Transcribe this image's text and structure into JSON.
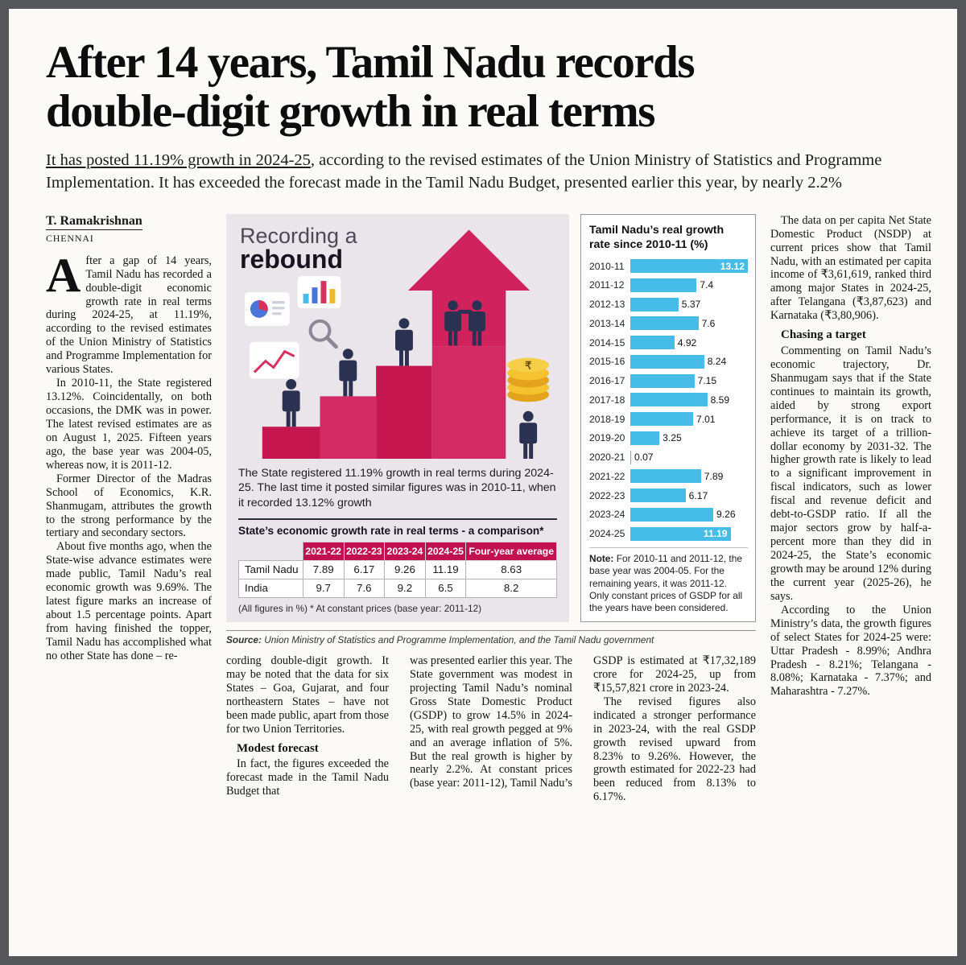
{
  "page": {
    "headline_line1": "After 14 years, Tamil Nadu records",
    "headline_line2": "double-digit growth in real terms",
    "subhead_underlined": "It has posted 11.19% growth in 2024-25",
    "subhead_rest": ", according to the revised estimates of the Union Ministry of Statistics and Programme Implementation. It has exceeded the forecast made in the Tamil Nadu Budget, presented earlier this year, by nearly 2.2%"
  },
  "byline": {
    "author": "T. Ramakrishnan",
    "place": "CHENNAI"
  },
  "article": {
    "col1": {
      "dropcap": "A",
      "para1": "fter a gap of 14 years, Tamil Nadu has recorded a double-digit economic growth rate in real terms during 2024-25, at 11.19%, according to the revised estimates of the Union Ministry of Statistics and Programme Implementation for various States.",
      "para2": "In 2010-11, the State registered 13.12%. Coincidentally, on both occasions, the DMK was in power. The latest revised estimates are as on August 1, 2025. Fifteen years ago, the base year was 2004-05, whereas now, it is 2011-12.",
      "para3": "Former Director of the Madras School of Economics, K.R. Shanmugam, attributes the growth to the strong performance by the tertiary and secondary sectors.",
      "para4": "About five months ago, when the State-wise advance estimates were made public, Tamil Nadu’s real economic growth was 9.69%. The latest figure marks an increase of about 1.5 percentage points. Apart from having finished the topper, Tamil Nadu has accomplished what no other State has done – re-"
    },
    "colA": {
      "p1": "cording double-digit growth. It may be noted that the data for six States – Goa, Gujarat, and four northeastern States – have not been made public, apart from those for two Union Territories.",
      "head": "Modest forecast",
      "p2": "In fact, the figures exceeded the forecast made in the Tamil Nadu Budget that"
    },
    "colB": {
      "p1": "was presented earlier this year. The State government was modest in projecting Tamil Nadu’s nominal Gross State Domestic Product (GSDP) to grow 14.5% in 2024-25, with real growth pegged at 9% and an average inflation of 5%. But the real growth is higher by nearly 2.2%. At constant prices (base year: 2011-12), Tamil Nadu’s"
    },
    "colC": {
      "p1": "GSDP is estimated at ₹17,32,189 crore for 2024-25, up from ₹15,57,821 crore in 2023-24.",
      "p2": "The revised figures also indicated a stronger performance in 2023-24, with the real GSDP growth revised upward from 8.23% to 9.26%. However, the growth estimated for 2022-23 had been reduced from 8.13% to 6.17%."
    },
    "right": {
      "p1": "The data on per capita Net State Domestic Product (NSDP) at current prices show that Tamil Nadu, with an estimated per capita income of ₹3,61,619, ranked third among major States in 2024-25, after Telangana (₹3,87,623) and Karnataka (₹3,80,906).",
      "head": "Chasing a target",
      "p2": "Commenting on Tamil Nadu’s economic trajectory, Dr. Shanmugam says that if the State continues to maintain its growth, aided by strong export performance, it is on track to achieve its target of a trillion-dollar economy by 2031-32. The higher growth rate is likely to lead to a significant improvement in fiscal indicators, such as lower fiscal and revenue deficit and debt-to-GSDP ratio. If all the major sectors grow by half-a-percent more than they did in 2024-25, the State’s economic growth may be around 12% during the current year (2025-26), he says.",
      "p3": "According to the Union Ministry’s data, the growth figures of select States for 2024-25 were: Uttar Pradesh - 8.99%; Andhra Pradesh - 8.21%; Telangana - 8.08%; Karnataka - 7.37%; and Maharashtra - 7.27%."
    }
  },
  "infographic": {
    "title_light": "Recording a",
    "title_bold": "rebound",
    "caption": "The State registered 11.19% growth in real terms during 2024-25. The last time it posted similar figures was in 2010-11, when it recorded 13.12% growth",
    "table": {
      "title": "State’s economic growth rate in real terms - a comparison*",
      "columns": [
        "2021-22",
        "2022-23",
        "2023-24",
        "2024-25",
        "Four-year average"
      ],
      "rows": [
        {
          "label": "Tamil Nadu",
          "values": [
            "7.89",
            "6.17",
            "9.26",
            "11.19",
            "8.63"
          ]
        },
        {
          "label": "India",
          "values": [
            "9.7",
            "7.6",
            "9.2",
            "6.5",
            "8.2"
          ]
        }
      ],
      "footnote": "(All figures in %) * At constant prices (base year: 2011-12)"
    },
    "source_label": "Source:",
    "source_text": " Union Ministry of Statistics and Programme Implementation, and the Tamil Nadu government",
    "colors": {
      "accent_crimson": "#d0235e",
      "panel_bg": "#eae5ea",
      "coin_gold": "#f4c32e",
      "figure_navy": "#2b3150"
    }
  },
  "chart_data": {
    "type": "bar",
    "orientation": "horizontal",
    "title": "Tamil Nadu’s real growth rate since 2010-11 (%)",
    "categories": [
      "2010-11",
      "2011-12",
      "2012-13",
      "2013-14",
      "2014-15",
      "2015-16",
      "2016-17",
      "2017-18",
      "2018-19",
      "2019-20",
      "2020-21",
      "2021-22",
      "2022-23",
      "2023-24",
      "2024-25"
    ],
    "values": [
      13.12,
      7.4,
      5.37,
      7.6,
      4.92,
      8.24,
      7.15,
      8.59,
      7.01,
      3.25,
      0.07,
      7.89,
      6.17,
      9.26,
      11.19
    ],
    "xlim": [
      0,
      13.12
    ],
    "bar_color": "#45bde8",
    "grid": false,
    "value_labels": true,
    "note_label": "Note:",
    "note_text": " For 2010-11 and 2011-12, the base year was 2004-05. For the remaining years, it was 2011-12. Only constant prices of GSDP for all the years have been considered."
  }
}
